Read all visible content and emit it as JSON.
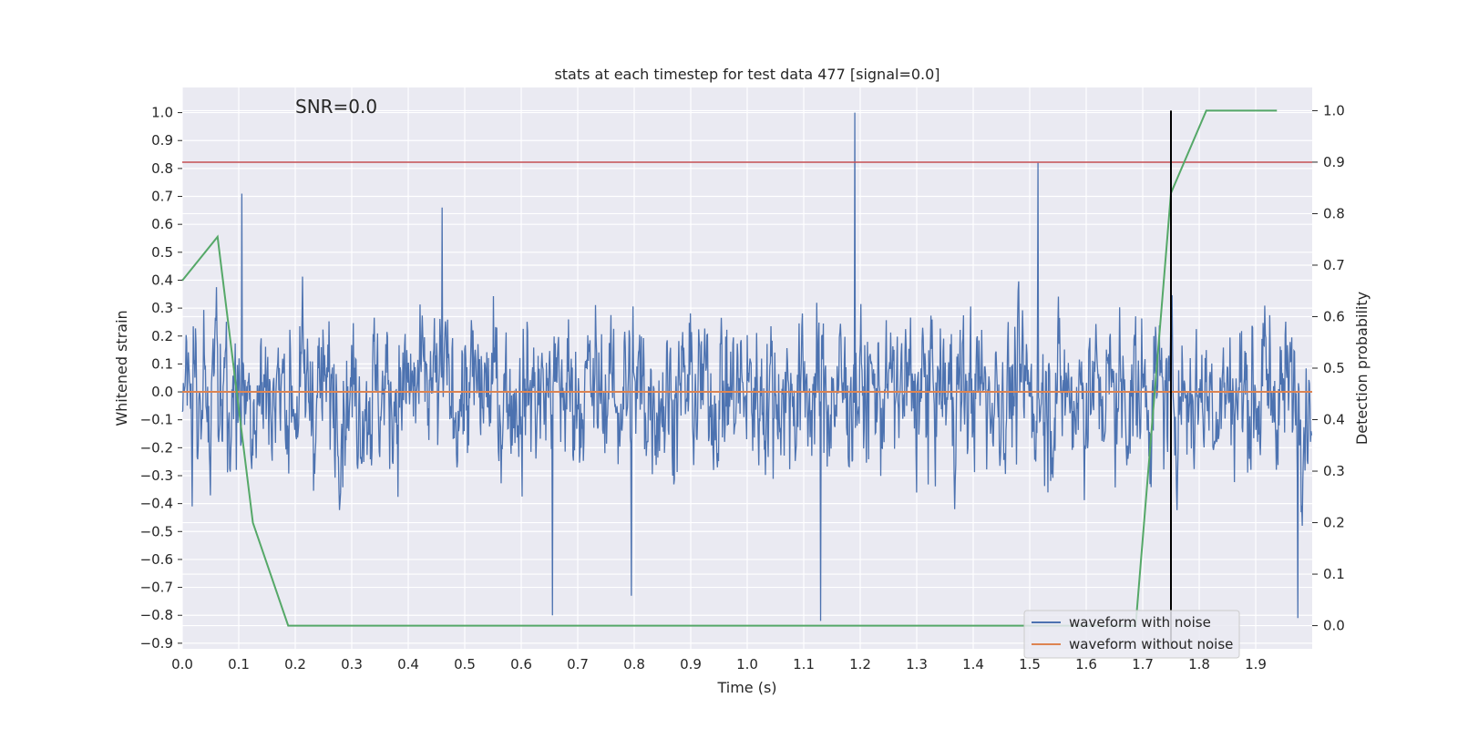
{
  "chart_data": {
    "type": "line",
    "title": "stats at each timestep for test data 477 [signal=0.0]",
    "xlabel": "Time (s)",
    "ylabel": "Whitened strain",
    "y2label": "Detection probability",
    "annotation": "SNR=0.0",
    "xlim": [
      0.0,
      2.0
    ],
    "ylim": [
      -0.92,
      1.09
    ],
    "y2lim": [
      -0.045,
      1.045
    ],
    "xticks": [
      "0.0",
      "0.1",
      "0.2",
      "0.3",
      "0.4",
      "0.5",
      "0.6",
      "0.7",
      "0.8",
      "0.9",
      "1.0",
      "1.1",
      "1.2",
      "1.3",
      "1.4",
      "1.5",
      "1.6",
      "1.7",
      "1.8",
      "1.9"
    ],
    "yticks": [
      "1.0",
      "0.9",
      "0.8",
      "0.7",
      "0.6",
      "0.5",
      "0.4",
      "0.3",
      "0.2",
      "0.1",
      "0.0",
      "−0.1",
      "−0.2",
      "−0.3",
      "−0.4",
      "−0.5",
      "−0.6",
      "−0.7",
      "−0.8",
      "−0.9"
    ],
    "y2ticks": [
      "1.0",
      "0.9",
      "0.8",
      "0.7",
      "0.6",
      "0.5",
      "0.4",
      "0.3",
      "0.2",
      "0.1",
      "0.0"
    ],
    "grid": true,
    "legend_position": "lower-right",
    "series": [
      {
        "name": "waveform with noise",
        "color": "#4c72b0",
        "axis": "left",
        "kind": "noise",
        "n_samples": 2048,
        "approx_range": [
          -0.82,
          1.0
        ],
        "peaks": [
          {
            "x": 1.19,
            "y": 1.0
          },
          {
            "x": 1.515,
            "y": 0.82
          },
          {
            "x": 0.105,
            "y": 0.71
          },
          {
            "x": 0.46,
            "y": 0.66
          },
          {
            "x": 1.13,
            "y": -0.82
          },
          {
            "x": 1.975,
            "y": -0.81
          },
          {
            "x": 0.655,
            "y": -0.8
          },
          {
            "x": 0.795,
            "y": -0.73
          }
        ]
      },
      {
        "name": "waveform without noise",
        "color": "#dd8452",
        "axis": "left",
        "x": [
          0.0,
          2.0
        ],
        "y": [
          0.0,
          0.0
        ]
      },
      {
        "name": "detection probability",
        "color": "#55a868",
        "axis": "right",
        "x": [
          0.0,
          0.0625,
          0.125,
          0.1875,
          0.25,
          0.3125,
          1.5625,
          1.625,
          1.6875,
          1.75,
          1.8125,
          1.875,
          1.9375
        ],
        "y": [
          0.67,
          0.755,
          0.2,
          0.0,
          0.0,
          0.0,
          0.0,
          0.0,
          0.0,
          0.84,
          1.0,
          1.0,
          1.0
        ]
      }
    ],
    "threshold": {
      "axis": "right",
      "value": 0.9,
      "color": "#c44e52"
    },
    "marker_line": {
      "x": 1.75,
      "color": "#000000"
    }
  }
}
